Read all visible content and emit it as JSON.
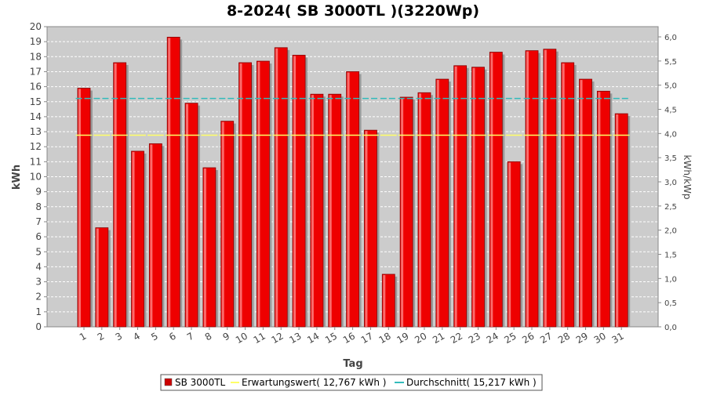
{
  "chart_data": {
    "type": "bar",
    "title": "8-2024( SB 3000TL )(3220Wp)",
    "xlabel": "Tag",
    "ylabel": "kWh",
    "y2label": "kWh/kWp",
    "ylim": [
      0,
      20
    ],
    "y2lim": [
      0,
      6.2112
    ],
    "yticks": [
      "0",
      "1",
      "2",
      "3",
      "4",
      "5",
      "6",
      "7",
      "8",
      "9",
      "10",
      "11",
      "12",
      "13",
      "14",
      "15",
      "16",
      "17",
      "18",
      "19",
      "20"
    ],
    "y2ticks": [
      "0,0",
      "0,5",
      "1,0",
      "1,5",
      "2,0",
      "2,5",
      "3,0",
      "3,5",
      "4,0",
      "4,5",
      "5,0",
      "5,5",
      "6,0"
    ],
    "categories": [
      "1",
      "2",
      "3",
      "4",
      "5",
      "6",
      "7",
      "8",
      "9",
      "10",
      "11",
      "12",
      "13",
      "14",
      "15",
      "16",
      "17",
      "18",
      "19",
      "20",
      "21",
      "22",
      "23",
      "24",
      "25",
      "26",
      "27",
      "28",
      "29",
      "30",
      "31"
    ],
    "series": [
      {
        "name": "SB 3000TL",
        "color": "#ee0000",
        "values": [
          15.9,
          6.6,
          17.6,
          11.7,
          12.2,
          19.3,
          14.9,
          10.6,
          13.7,
          17.6,
          17.7,
          18.6,
          18.1,
          15.5,
          15.5,
          17.0,
          13.1,
          3.5,
          15.3,
          15.6,
          16.5,
          17.4,
          17.3,
          18.3,
          11.0,
          18.4,
          18.5,
          17.6,
          16.5,
          15.7,
          14.2
        ]
      }
    ],
    "reference_lines": [
      {
        "name": "Erwartungswert",
        "value": 12.767,
        "color": "#ffff66",
        "style": "solid"
      },
      {
        "name": "Durchschnitt",
        "value": 15.217,
        "color": "#33bbbb",
        "style": "dashed"
      }
    ],
    "legend": {
      "placement": "bottom",
      "items": [
        "SB 3000TL",
        "Erwartungswert( 12,767 kWh )",
        "Durchschnitt( 15,217 kWh )"
      ]
    },
    "grid": true,
    "plot_background": "#cccccc"
  }
}
